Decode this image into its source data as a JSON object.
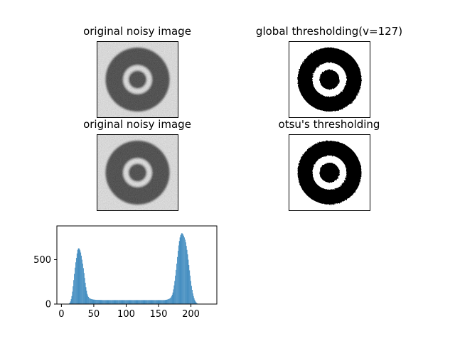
{
  "figure": {
    "panels": [
      {
        "title": "original noisy image",
        "kind": "noisy"
      },
      {
        "title": "global thresholding(v=127)",
        "kind": "binary-global"
      },
      {
        "title": "original noisy image",
        "kind": "noisy"
      },
      {
        "title": "otsu's thresholding",
        "kind": "binary-otsu"
      }
    ]
  },
  "colors": {
    "bar": "#1f77b4",
    "dark": "#1a1a1a",
    "light": "#e6e6e6",
    "black": "#000000",
    "white": "#ffffff"
  },
  "chart_data": {
    "type": "bar",
    "title": "",
    "xlabel": "",
    "ylabel": "",
    "xlim": [
      -7,
      240
    ],
    "ylim": [
      0,
      880
    ],
    "xticks": [
      0,
      50,
      100,
      150,
      200
    ],
    "yticks": [
      0,
      500
    ],
    "bins": {
      "start": 10,
      "end": 226,
      "step": 1
    },
    "values": [
      2,
      4,
      8,
      16,
      30,
      55,
      90,
      140,
      200,
      270,
      340,
      410,
      470,
      520,
      570,
      610,
      625,
      630,
      620,
      605,
      580,
      545,
      500,
      455,
      405,
      350,
      295,
      240,
      190,
      150,
      115,
      95,
      80,
      70,
      64,
      60,
      57,
      55,
      53,
      52,
      50,
      50,
      49,
      48,
      48,
      48,
      47,
      47,
      47,
      46,
      46,
      46,
      46,
      45,
      45,
      45,
      45,
      45,
      45,
      45,
      45,
      45,
      45,
      45,
      45,
      45,
      45,
      45,
      45,
      45,
      45,
      45,
      45,
      45,
      45,
      45,
      45,
      45,
      45,
      45,
      45,
      45,
      45,
      45,
      45,
      45,
      45,
      45,
      45,
      45,
      45,
      45,
      45,
      45,
      45,
      45,
      45,
      45,
      45,
      45,
      45,
      45,
      45,
      45,
      45,
      45,
      45,
      45,
      45,
      45,
      45,
      45,
      45,
      45,
      45,
      45,
      45,
      45,
      45,
      45,
      45,
      45,
      45,
      45,
      45,
      45,
      45,
      45,
      45,
      45,
      45,
      45,
      45,
      45,
      45,
      45,
      45,
      45,
      45,
      45,
      45,
      45,
      45,
      45,
      45,
      45,
      45,
      45,
      45,
      45,
      46,
      47,
      48,
      50,
      52,
      55,
      58,
      62,
      68,
      76,
      88,
      105,
      130,
      165,
      210,
      260,
      320,
      385,
      455,
      530,
      600,
      660,
      710,
      750,
      775,
      790,
      800,
      795,
      785,
      770,
      750,
      725,
      695,
      655,
      610,
      560,
      500,
      440,
      380,
      320,
      260,
      205,
      160,
      120,
      90,
      65,
      45,
      30,
      20,
      12,
      7,
      4,
      2,
      1,
      1,
      1,
      1,
      1,
      1,
      1,
      1,
      1,
      1,
      1,
      1,
      1
    ]
  }
}
